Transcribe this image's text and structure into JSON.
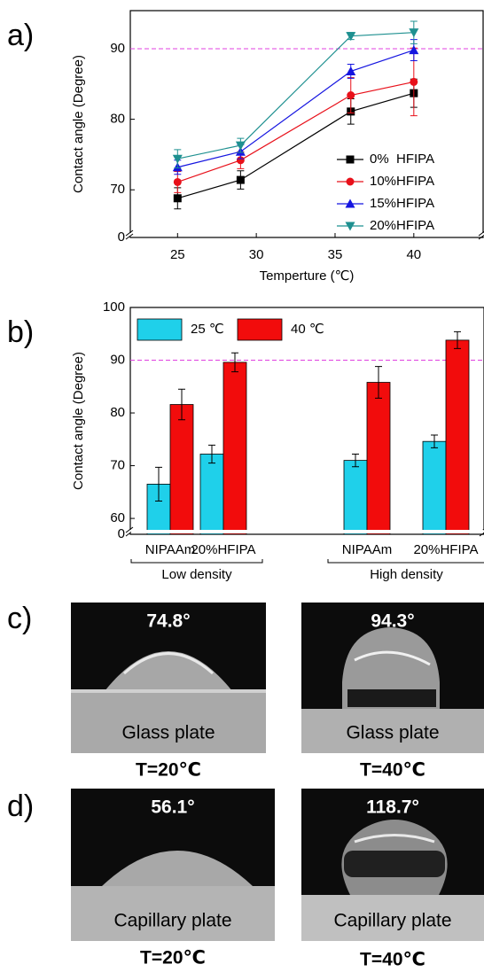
{
  "chart_data": [
    {
      "type": "line",
      "panel_label": "a)",
      "x_label": "Temperture (℃)",
      "y_label": "Contact angle (Degree)",
      "x": [
        25,
        29,
        36,
        40
      ],
      "xlim": [
        22,
        44.4
      ],
      "xticks": [
        25,
        30,
        35,
        40
      ],
      "ylim": [
        0,
        95.4
      ],
      "y_break": [
        0,
        64
      ],
      "yticks": [
        0,
        70,
        80,
        90
      ],
      "ref_line": 90,
      "ref_color": "#e040e0",
      "legend": "lower right",
      "series": [
        {
          "name": "0%  HFIPA",
          "color": "#000000",
          "marker": "square",
          "values": [
            68.8,
            71.4,
            81.1,
            83.7
          ],
          "errors": [
            1.5,
            1.3,
            1.8,
            2.0
          ]
        },
        {
          "name": "10%HFIPA",
          "color": "#e8101a",
          "marker": "circle",
          "values": [
            71.1,
            74.2,
            83.4,
            85.3
          ],
          "errors": [
            1.5,
            1.2,
            2.5,
            4.8
          ]
        },
        {
          "name": "15%HFIPA",
          "color": "#1515e0",
          "marker": "triangle-up",
          "values": [
            73.2,
            75.4,
            86.8,
            89.8
          ],
          "errors": [
            1.0,
            1.0,
            1.0,
            1.5
          ]
        },
        {
          "name": "20%HFIPA",
          "color": "#1e9090",
          "marker": "triangle-down",
          "values": [
            74.4,
            76.3,
            91.8,
            92.3
          ],
          "errors": [
            1.3,
            1.0,
            0.5,
            1.6
          ]
        }
      ]
    },
    {
      "type": "bar",
      "panel_label": "b)",
      "y_label": "Contact angle (Degree)",
      "categories": [
        "NIPAAm",
        "20%HFIPA",
        "NIPAAm",
        "20%HFIPA"
      ],
      "groups": [
        "Low density",
        "High density"
      ],
      "ylim": [
        0,
        100
      ],
      "y_break": [
        0,
        58
      ],
      "yticks": [
        0,
        60,
        70,
        80,
        90,
        100
      ],
      "ref_line": 90,
      "ref_color": "#e040e0",
      "legend": "upper left",
      "series": [
        {
          "name": "25 ℃",
          "color": "#1fd0ea",
          "values": [
            66.5,
            72.2,
            71.0,
            74.6
          ],
          "errors": [
            3.2,
            1.7,
            1.2,
            1.2
          ]
        },
        {
          "name": "40 ℃",
          "color": "#f20c0c",
          "values": [
            81.6,
            89.6,
            85.8,
            93.8
          ],
          "errors": [
            2.9,
            1.8,
            3.0,
            1.6
          ]
        }
      ]
    }
  ],
  "photos": [
    {
      "panel_label": "c)",
      "images": [
        {
          "angle": "74.8°",
          "substrate": "Glass plate",
          "temperature": "T=20℃"
        },
        {
          "angle": "94.3°",
          "substrate": "Glass plate",
          "temperature": "T=40℃"
        }
      ]
    },
    {
      "panel_label": "d)",
      "images": [
        {
          "angle": "56.1°",
          "substrate": "Capillary plate",
          "temperature": "T=20℃"
        },
        {
          "angle": "118.7°",
          "substrate": "Capillary plate",
          "temperature": "T=40℃"
        }
      ]
    }
  ]
}
